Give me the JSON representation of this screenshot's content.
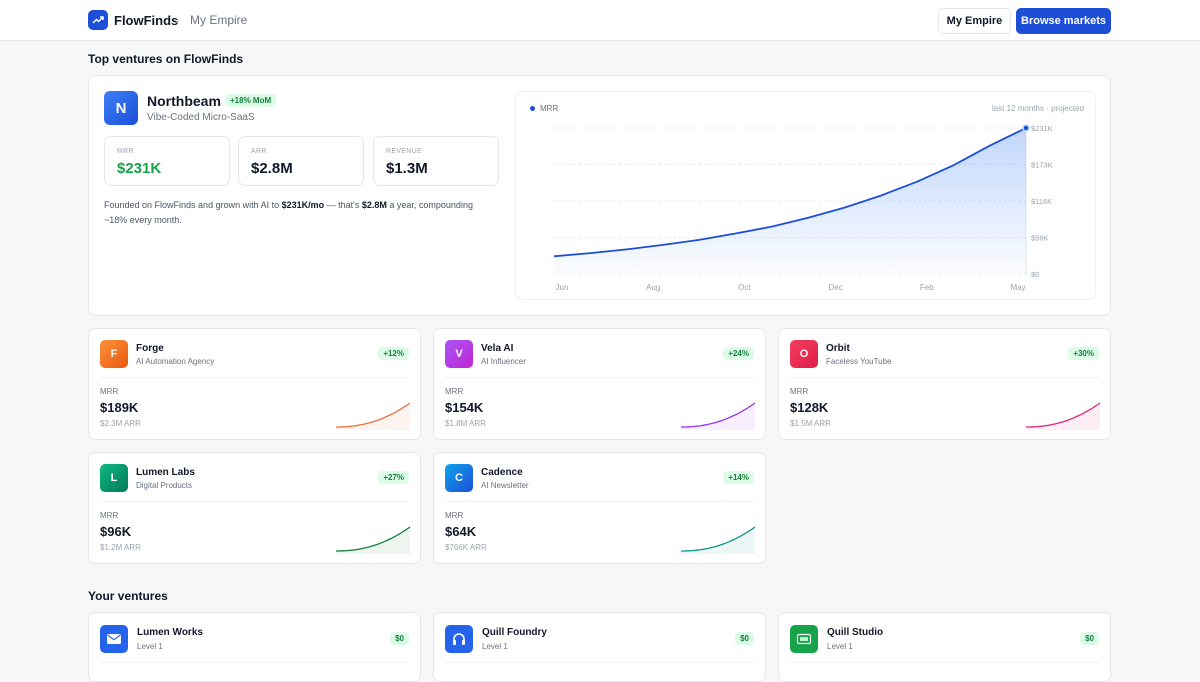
{
  "header": {
    "brand": "FlowFinds",
    "breadcrumb_sep": "›",
    "breadcrumb": "My Empire",
    "my_empire_label": "My Empire",
    "browse_label": "Browse markets",
    "logo_icon": "trending-up-icon",
    "accent": "#1d4ed8"
  },
  "top_title": "Top ventures on FlowFinds",
  "featured": {
    "initial": "N",
    "name": "Northbeam",
    "badge": "+18% MoM",
    "category": "Vibe-Coded Micro-SaaS",
    "stats": [
      {
        "label": "MRR",
        "value": "$231K",
        "color": "#16a34a"
      },
      {
        "label": "ARR",
        "value": "$2.8M",
        "color": "#111827"
      },
      {
        "label": "REVENUE",
        "value": "$1.3M",
        "color": "#111827"
      }
    ],
    "desc_1": "Founded on FlowFinds and grown with AI to ",
    "desc_b1": "$231K/mo",
    "desc_2": " — that's ",
    "desc_b2": "$2.8M",
    "desc_3": " a year, compounding ~18% every month."
  },
  "chart_data": {
    "type": "area",
    "series": [
      {
        "name": "MRR",
        "values": [
          28,
          33,
          39,
          46,
          54,
          64,
          75,
          89,
          105,
          124,
          146,
          172,
          203,
          231
        ]
      }
    ],
    "x_tick_labels": [
      "Jun",
      "Aug",
      "Oct",
      "Dec",
      "Feb",
      "May"
    ],
    "y_tick_labels": [
      "$231K",
      "$173K",
      "$116K",
      "$58K",
      "$0"
    ],
    "ylim": [
      0,
      231
    ],
    "subtitle": "last 12 months · projected",
    "legend": "top-left",
    "grid": true,
    "color": "#1d4ed8"
  },
  "ventures": [
    {
      "initial": "F",
      "name": "Forge",
      "category": "AI Automation Agency",
      "growth": "+12%",
      "mrr_label": "MRR",
      "mrr": "$189K",
      "arr": "$2.3M ARR",
      "color1": "#fb923c",
      "color2": "#ea580c",
      "line": "#ea6f3a"
    },
    {
      "initial": "V",
      "name": "Vela AI",
      "category": "AI Influencer",
      "growth": "+24%",
      "mrr_label": "MRR",
      "mrr": "$154K",
      "arr": "$1.8M ARR",
      "color1": "#a855f7",
      "color2": "#c026d3",
      "line": "#9333ea"
    },
    {
      "initial": "O",
      "name": "Orbit",
      "category": "Faceless YouTube",
      "growth": "+30%",
      "mrr_label": "MRR",
      "mrr": "$128K",
      "arr": "$1.5M ARR",
      "color1": "#f43f5e",
      "color2": "#e11d48",
      "line": "#db2777"
    },
    {
      "initial": "L",
      "name": "Lumen Labs",
      "category": "Digital Products",
      "growth": "+27%",
      "mrr_label": "MRR",
      "mrr": "$96K",
      "arr": "$1.2M ARR",
      "color1": "#10b981",
      "color2": "#047857",
      "line": "#15803d"
    },
    {
      "initial": "C",
      "name": "Cadence",
      "category": "AI Newsletter",
      "growth": "+14%",
      "mrr_label": "MRR",
      "mrr": "$64K",
      "arr": "$766K ARR",
      "color1": "#0ea5e9",
      "color2": "#1d4ed8",
      "line": "#0d9488"
    }
  ],
  "your_title": "Your ventures",
  "your_ventures": [
    {
      "name": "Lumen Works",
      "level": "Level 1",
      "amount": "$0",
      "icon": "mail-icon",
      "color": "#2563eb"
    },
    {
      "name": "Quill Foundry",
      "level": "Level 1",
      "amount": "$0",
      "icon": "headphones-icon",
      "color": "#2563eb"
    },
    {
      "name": "Quill Studio",
      "level": "Level 1",
      "amount": "$0",
      "icon": "video-icon",
      "color": "#16a34a"
    }
  ]
}
